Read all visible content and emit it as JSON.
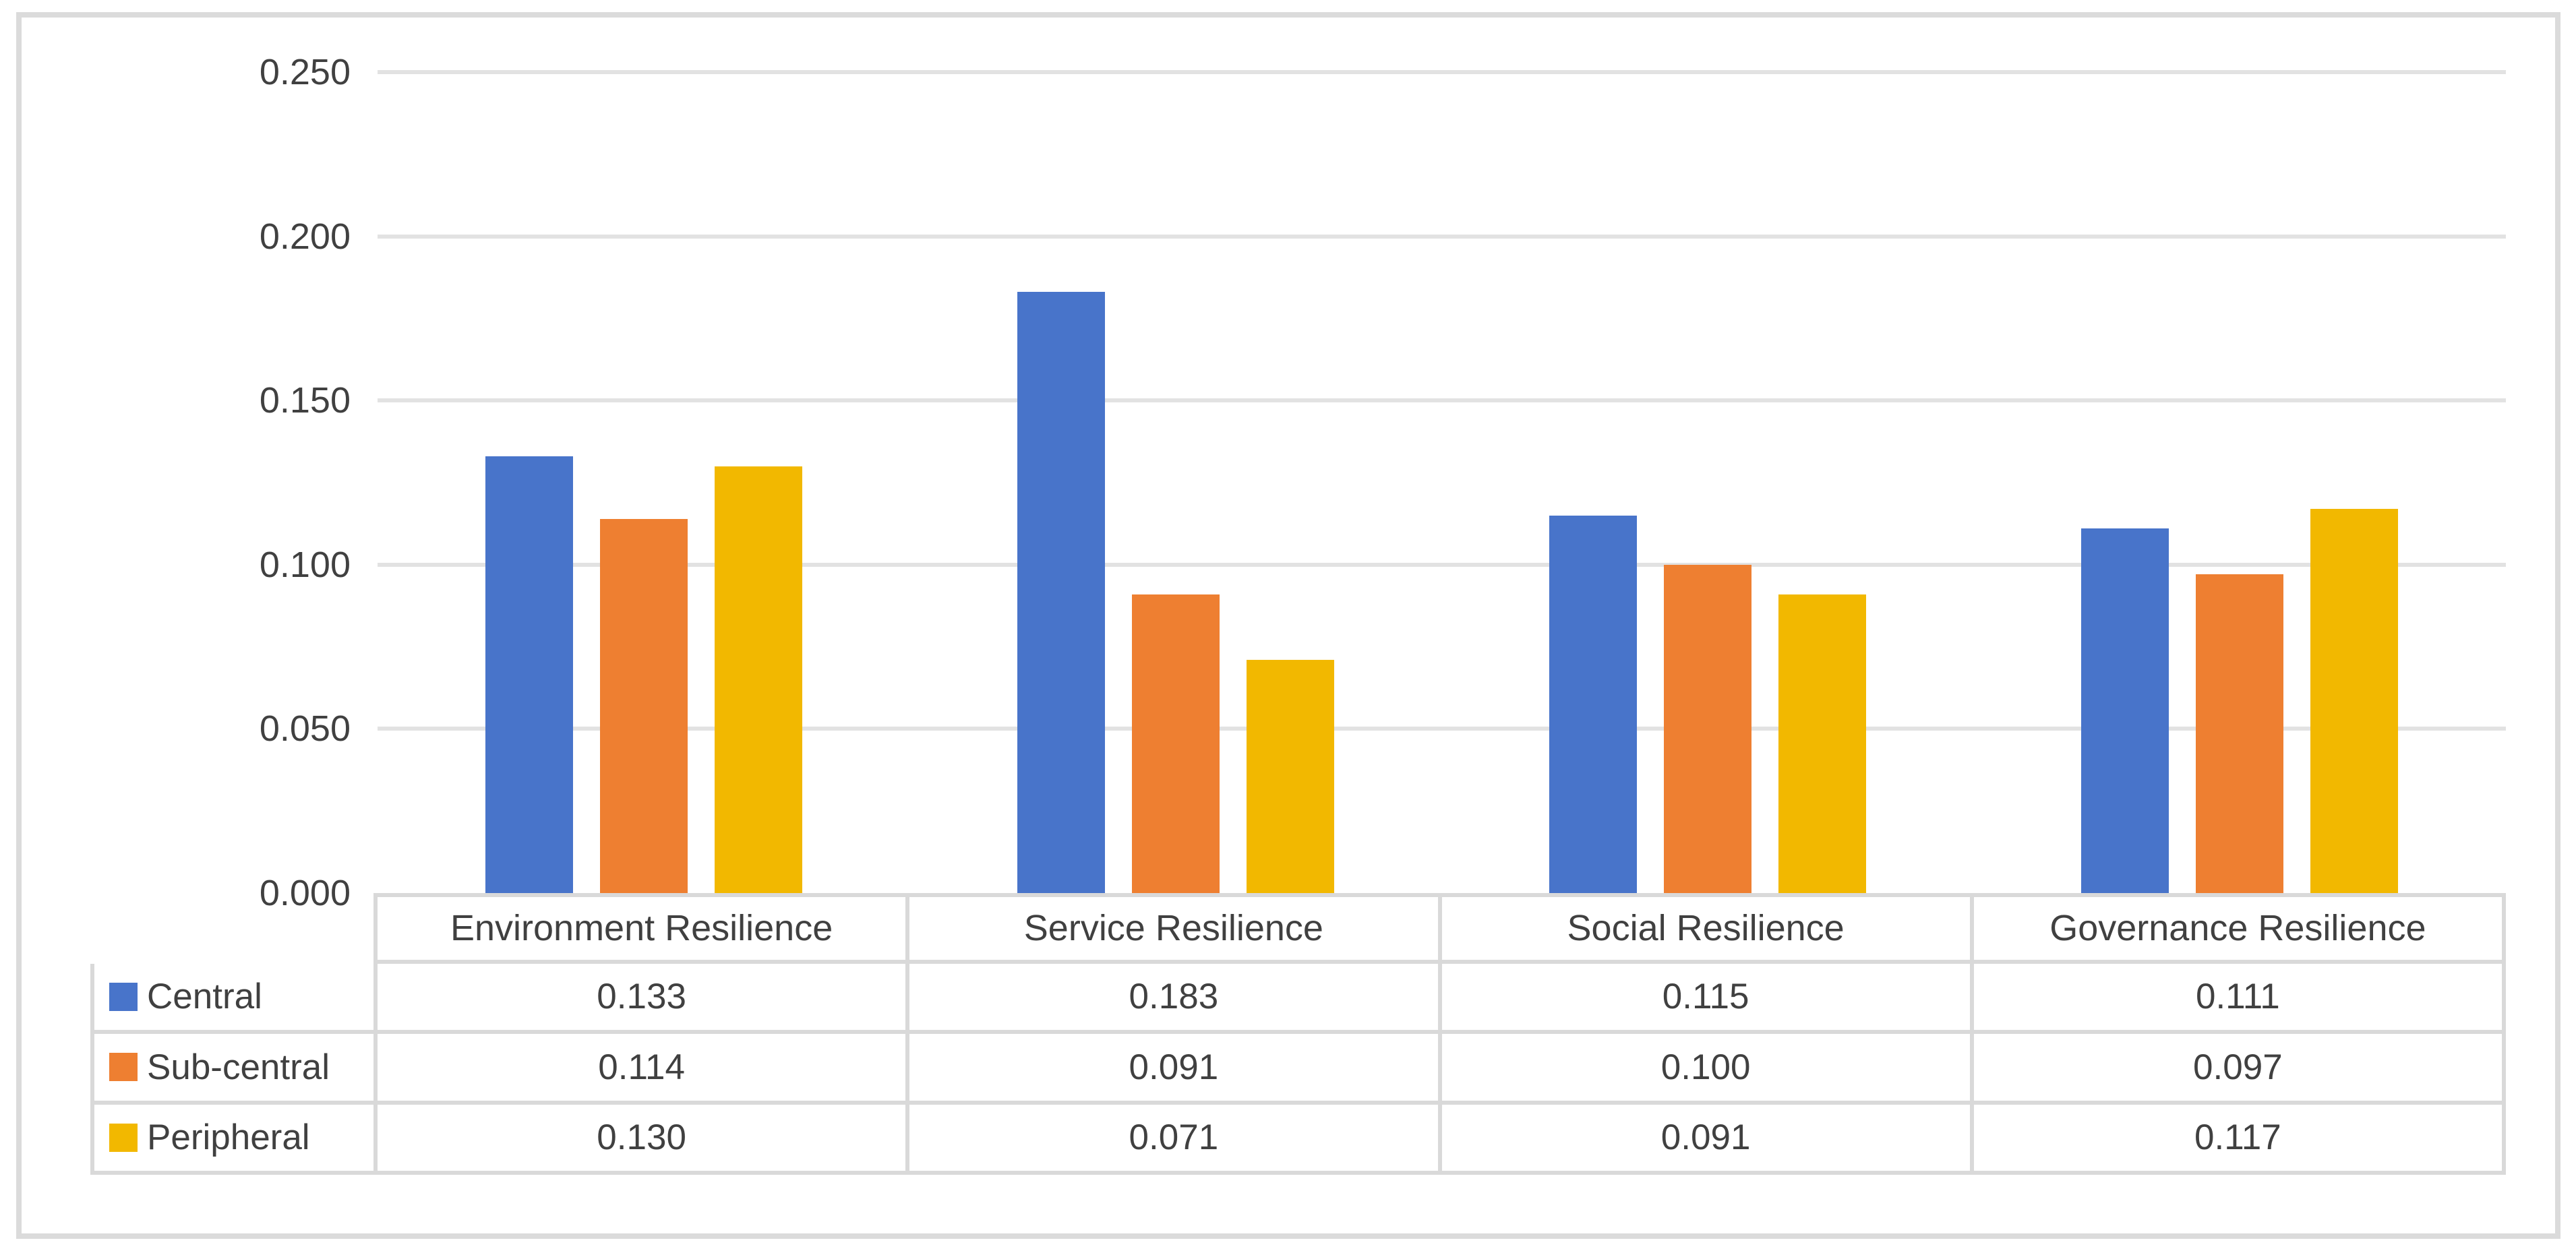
{
  "figure": {
    "background": "#FFFFFF",
    "border_color": "#DBDBDB"
  },
  "colors": {
    "gridline": "#E2E2E2",
    "table_border": "#D9D9D9",
    "text": "#404040"
  },
  "chart_data": {
    "type": "bar",
    "title": "",
    "xlabel": "",
    "ylabel": "",
    "grid": true,
    "data_table_shown": true,
    "legend_position": "data-table-left",
    "ylim": [
      0,
      0.25
    ],
    "ytick_values": [
      0.25,
      0.2,
      0.15,
      0.1,
      0.05,
      0
    ],
    "ytick_labels": [
      "0.250",
      "0.200",
      "0.150",
      "0.100",
      "0.050",
      "0.000"
    ],
    "categories": [
      "Environment Resilience",
      "Service Resilience",
      "Social Resilience",
      "Governance Resilience"
    ],
    "series": [
      {
        "name": "Central",
        "color": "#4874CA",
        "values": [
          0.133,
          0.183,
          0.115,
          0.111
        ]
      },
      {
        "name": "Sub-central",
        "color": "#EE7F31",
        "values": [
          0.114,
          0.091,
          0.1,
          0.097
        ]
      },
      {
        "name": "Peripheral",
        "color": "#F2B800",
        "values": [
          0.13,
          0.071,
          0.091,
          0.117
        ]
      }
    ],
    "cell_value_format": "0.000"
  }
}
